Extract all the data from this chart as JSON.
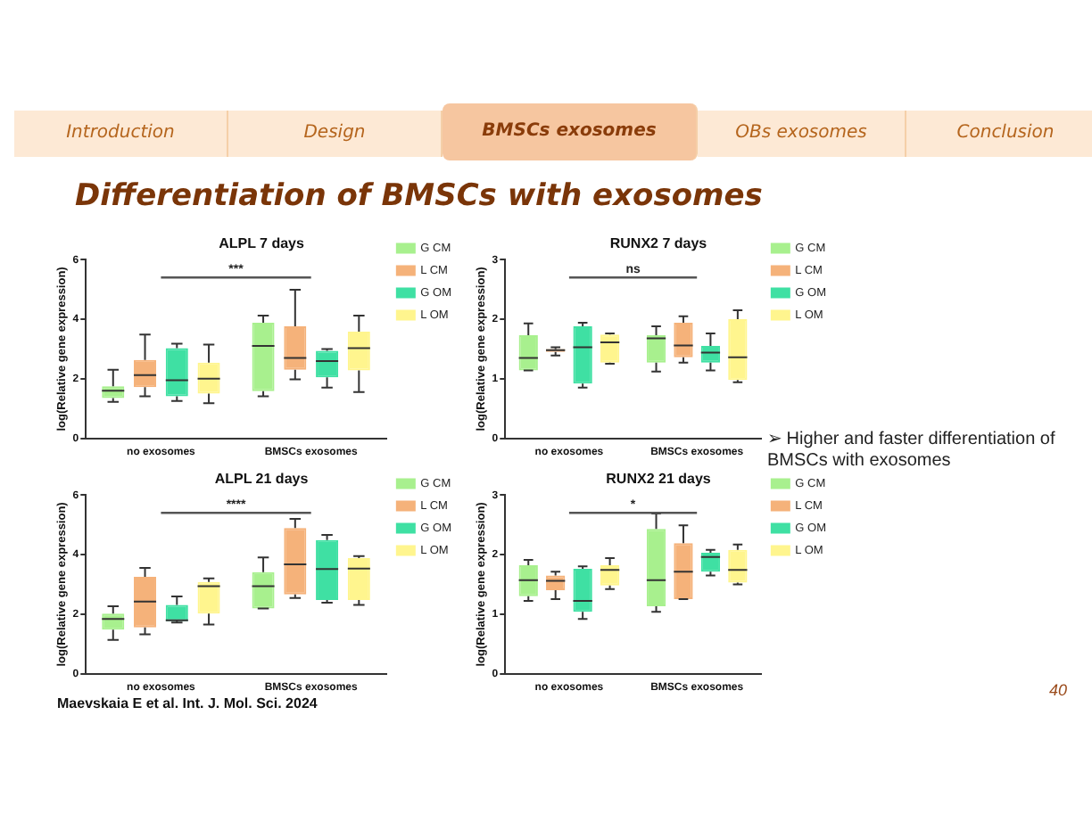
{
  "chart_data": [
    {
      "type": "other",
      "title": "Differentiation of BMSCs with exosomes",
      "annotations": [
        "Introduction",
        "Design",
        "BMSCs exosomes",
        "OBs exosomes",
        "Conclusion",
        "➢ Higher and faster differentiation of BMSCs with exosomes",
        "Maevskaia E et al. Int. J. Mol. Sci. 2024",
        "40"
      ]
    },
    {
      "type": "box",
      "title": "ALPL 7 days",
      "ylabel": "log(Relative gene expression)",
      "categories": [
        "no exosomes",
        "BMSCs exosomes"
      ],
      "ylim": [
        0,
        6
      ],
      "yticks": [
        0,
        2,
        4,
        6
      ],
      "grid": false,
      "legend": "right",
      "annotations": [
        "***"
      ],
      "series": [
        {
          "name": "G CM",
          "color": "#a8f08e",
          "boxes": [
            {
              "low": 1.22,
              "q1": 1.35,
              "median": 1.6,
              "q3": 1.75,
              "high": 2.3
            },
            {
              "low": 1.41,
              "q1": 1.58,
              "median": 3.1,
              "q3": 3.88,
              "high": 4.12
            }
          ]
        },
        {
          "name": "L CM",
          "color": "#f5b27a",
          "boxes": [
            {
              "low": 1.41,
              "q1": 1.72,
              "median": 2.12,
              "q3": 2.63,
              "high": 3.48
            },
            {
              "low": 1.98,
              "q1": 2.3,
              "median": 2.7,
              "q3": 3.76,
              "high": 4.99
            }
          ]
        },
        {
          "name": "G OM",
          "color": "#3fe0a3",
          "boxes": [
            {
              "low": 1.25,
              "q1": 1.41,
              "median": 1.95,
              "q3": 3.03,
              "high": 3.18
            },
            {
              "low": 1.7,
              "q1": 2.05,
              "median": 2.59,
              "q3": 2.94,
              "high": 3.0
            }
          ]
        },
        {
          "name": "L OM",
          "color": "#fff58e",
          "boxes": [
            {
              "low": 1.18,
              "q1": 1.5,
              "median": 2.0,
              "q3": 2.54,
              "high": 3.15
            },
            {
              "low": 1.55,
              "q1": 2.28,
              "median": 3.03,
              "q3": 3.58,
              "high": 4.12
            }
          ]
        }
      ]
    },
    {
      "type": "box",
      "title": "RUNX2 7 days",
      "ylabel": "log(Relative gene expression)",
      "categories": [
        "no exosomes",
        "BMSCs exosomes"
      ],
      "ylim": [
        0,
        3
      ],
      "yticks": [
        0,
        1,
        2,
        3
      ],
      "grid": false,
      "legend": "right",
      "annotations": [
        "ns"
      ],
      "series": [
        {
          "name": "G CM",
          "color": "#a8f08e",
          "boxes": [
            {
              "low": 1.14,
              "q1": 1.14,
              "median": 1.35,
              "q3": 1.73,
              "high": 1.93
            },
            {
              "low": 1.12,
              "q1": 1.27,
              "median": 1.68,
              "q3": 1.73,
              "high": 1.88
            }
          ]
        },
        {
          "name": "L CM",
          "color": "#f5b27a",
          "boxes": [
            {
              "low": 1.39,
              "q1": 1.45,
              "median": 1.48,
              "q3": 1.5,
              "high": 1.53
            },
            {
              "low": 1.27,
              "q1": 1.36,
              "median": 1.56,
              "q3": 1.94,
              "high": 2.05
            }
          ]
        },
        {
          "name": "G OM",
          "color": "#3fe0a3",
          "boxes": [
            {
              "low": 0.85,
              "q1": 0.92,
              "median": 1.53,
              "q3": 1.88,
              "high": 1.94
            },
            {
              "low": 1.14,
              "q1": 1.27,
              "median": 1.44,
              "q3": 1.55,
              "high": 1.76
            }
          ]
        },
        {
          "name": "L OM",
          "color": "#fff58e",
          "boxes": [
            {
              "low": 1.25,
              "q1": 1.27,
              "median": 1.61,
              "q3": 1.74,
              "high": 1.76
            },
            {
              "low": 0.94,
              "q1": 0.98,
              "median": 1.36,
              "q3": 2.0,
              "high": 2.15
            }
          ]
        }
      ]
    },
    {
      "type": "box",
      "title": "ALPL 21 days",
      "ylabel": "log(Relative gene expression)",
      "categories": [
        "no exosomes",
        "BMSCs exosomes"
      ],
      "ylim": [
        0,
        6
      ],
      "yticks": [
        0,
        2,
        4,
        6
      ],
      "grid": false,
      "legend": "right",
      "annotations": [
        "****"
      ],
      "series": [
        {
          "name": "G CM",
          "color": "#a8f08e",
          "boxes": [
            {
              "low": 1.13,
              "q1": 1.48,
              "median": 1.84,
              "q3": 2.02,
              "high": 2.26
            },
            {
              "low": 2.19,
              "q1": 2.19,
              "median": 2.94,
              "q3": 3.41,
              "high": 3.9
            }
          ]
        },
        {
          "name": "L CM",
          "color": "#f5b27a",
          "boxes": [
            {
              "low": 1.32,
              "q1": 1.55,
              "median": 2.42,
              "q3": 3.25,
              "high": 3.55
            },
            {
              "low": 2.54,
              "q1": 2.66,
              "median": 3.67,
              "q3": 4.89,
              "high": 5.2
            }
          ]
        },
        {
          "name": "G OM",
          "color": "#3fe0a3",
          "boxes": [
            {
              "low": 1.72,
              "q1": 1.76,
              "median": 1.79,
              "q3": 2.31,
              "high": 2.59
            },
            {
              "low": 2.38,
              "q1": 2.47,
              "median": 3.51,
              "q3": 4.49,
              "high": 4.66
            }
          ]
        },
        {
          "name": "L OM",
          "color": "#fff58e",
          "boxes": [
            {
              "low": 1.65,
              "q1": 2.02,
              "median": 2.94,
              "q3": 3.08,
              "high": 3.2
            },
            {
              "low": 2.31,
              "q1": 2.47,
              "median": 3.53,
              "q3": 3.88,
              "high": 3.95
            }
          ]
        }
      ]
    },
    {
      "type": "box",
      "title": "RUNX2 21 days",
      "ylabel": "log(Relative gene expression)",
      "categories": [
        "no exosomes",
        "BMSCs exosomes"
      ],
      "ylim": [
        0,
        3
      ],
      "yticks": [
        0,
        1,
        2,
        3
      ],
      "grid": false,
      "legend": "right",
      "annotations": [
        "*"
      ],
      "series": [
        {
          "name": "G CM",
          "color": "#a8f08e",
          "boxes": [
            {
              "low": 1.22,
              "q1": 1.3,
              "median": 1.57,
              "q3": 1.82,
              "high": 1.91
            },
            {
              "low": 1.04,
              "q1": 1.13,
              "median": 1.57,
              "q3": 2.43,
              "high": 2.69
            }
          ]
        },
        {
          "name": "L CM",
          "color": "#f5b27a",
          "boxes": [
            {
              "low": 1.25,
              "q1": 1.4,
              "median": 1.56,
              "q3": 1.65,
              "high": 1.71
            },
            {
              "low": 1.25,
              "q1": 1.25,
              "median": 1.71,
              "q3": 2.19,
              "high": 2.49
            }
          ]
        },
        {
          "name": "G OM",
          "color": "#3fe0a3",
          "boxes": [
            {
              "low": 0.92,
              "q1": 1.04,
              "median": 1.22,
              "q3": 1.76,
              "high": 1.8
            },
            {
              "low": 1.65,
              "q1": 1.71,
              "median": 1.96,
              "q3": 2.03,
              "high": 2.08
            }
          ]
        },
        {
          "name": "L OM",
          "color": "#fff58e",
          "boxes": [
            {
              "low": 1.42,
              "q1": 1.48,
              "median": 1.74,
              "q3": 1.82,
              "high": 1.94
            },
            {
              "low": 1.5,
              "q1": 1.53,
              "median": 1.74,
              "q3": 2.08,
              "high": 2.17
            }
          ]
        }
      ]
    }
  ]
}
